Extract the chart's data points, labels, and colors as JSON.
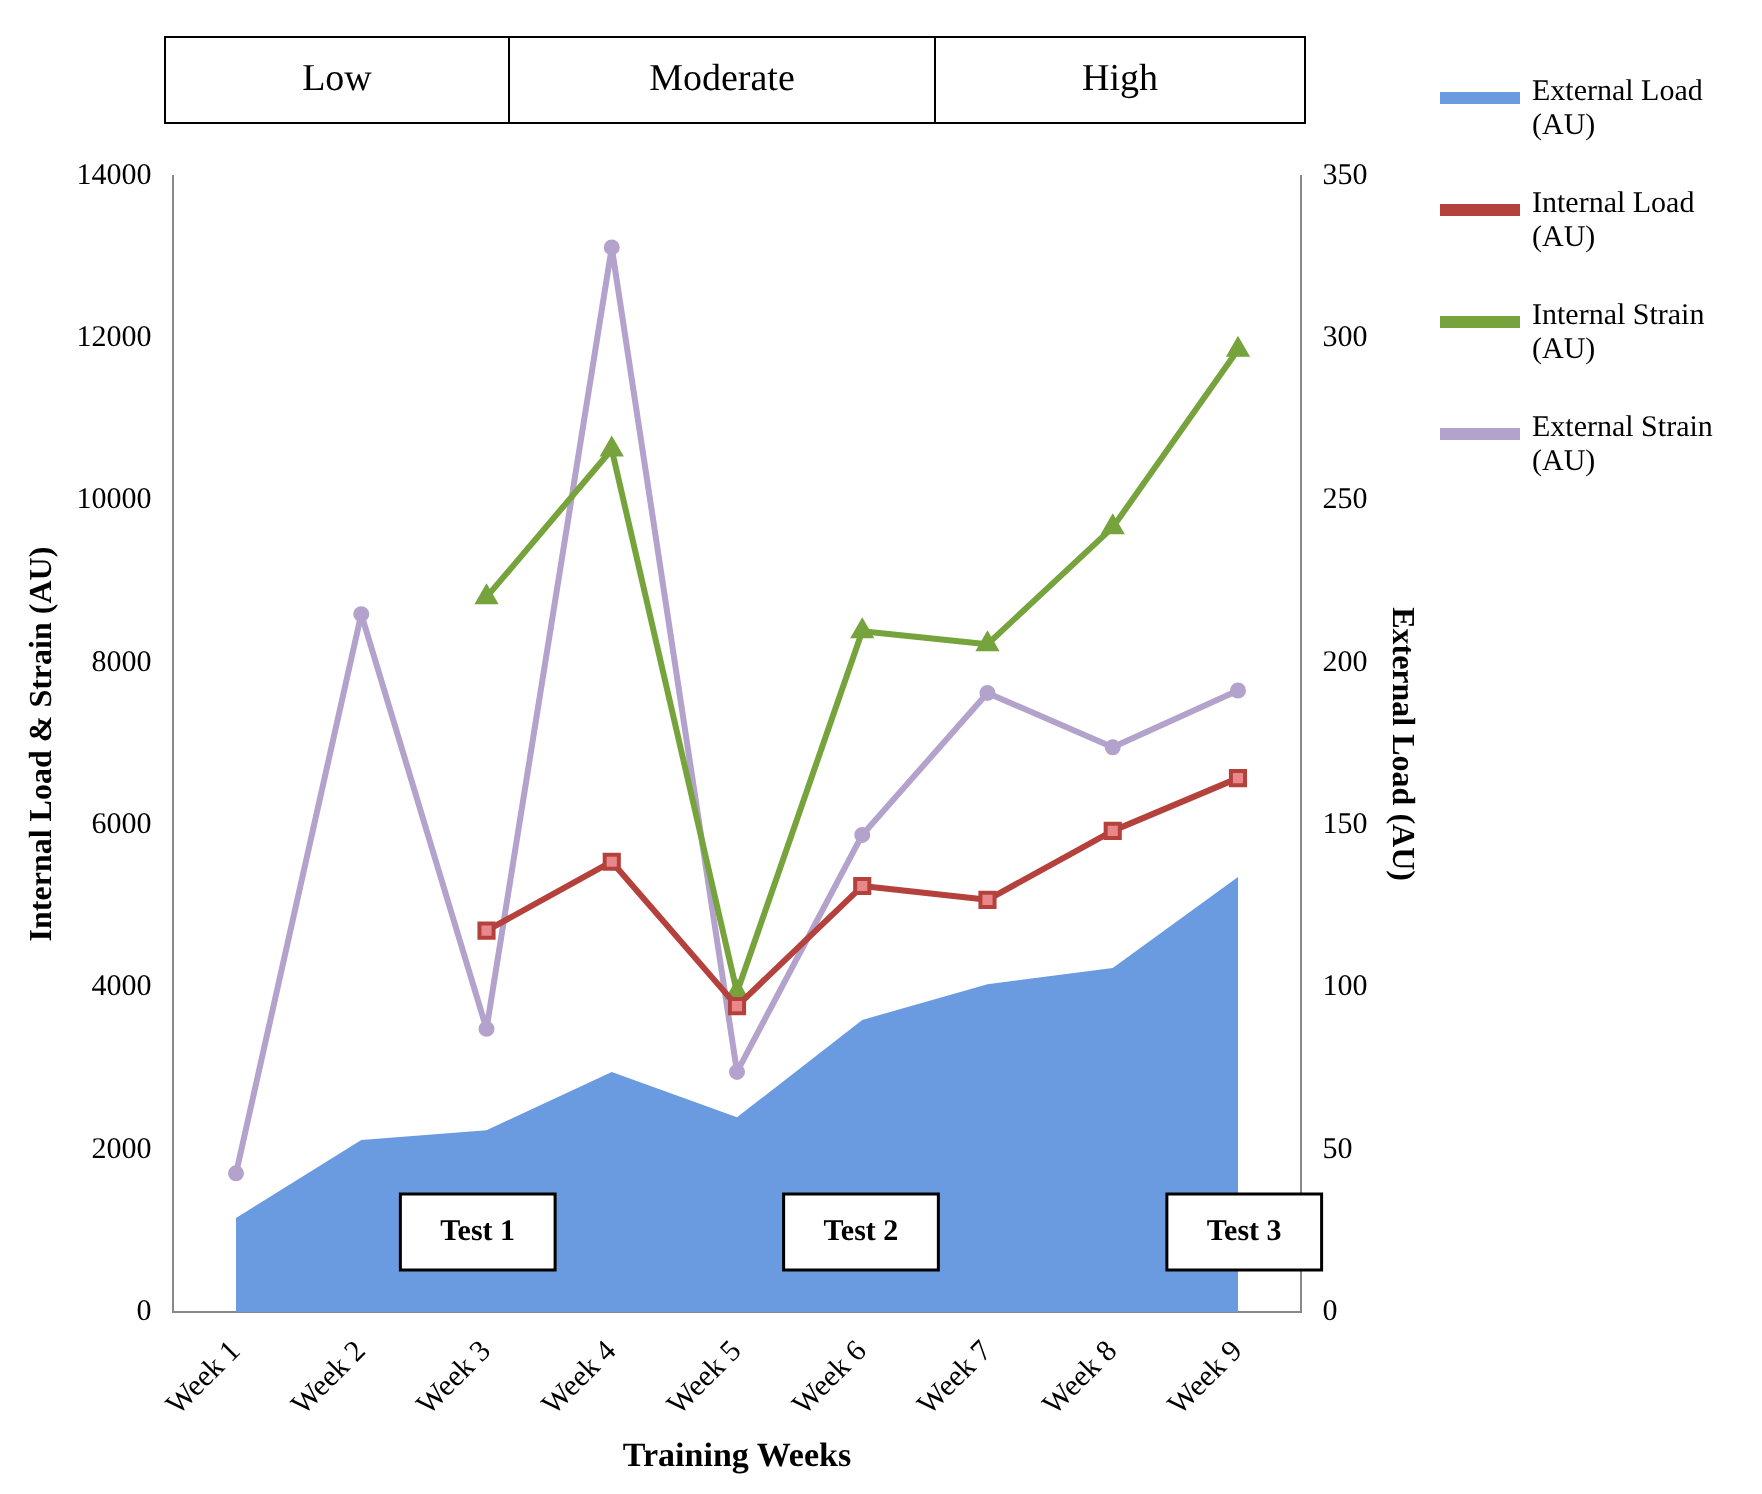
{
  "chart_data": {
    "type": "line",
    "xlabel": "Training Weeks",
    "ylabel": "Internal Load & Strain (AU)",
    "y2label": "External Load (AU)",
    "categories": [
      "Week 1",
      "Week 2",
      "Week 3",
      "Week 4",
      "Week 5",
      "Week 6",
      "Week 7",
      "Week 8",
      "Week 9"
    ],
    "series": [
      {
        "name": "External Load (AU)",
        "type": "area",
        "axis": "y2",
        "color": "#6a9ae0",
        "marker": "none",
        "values": [
          29,
          53,
          56,
          74,
          60,
          90,
          101,
          106,
          134
        ]
      },
      {
        "name": "Internal Load (AU)",
        "type": "line",
        "color": "#b5413d",
        "marker": "square",
        "values": [
          null,
          null,
          4700,
          5550,
          3770,
          5250,
          5080,
          5930,
          6580
        ]
      },
      {
        "name": "Internal Strain (AU)",
        "type": "line",
        "color": "#76a33c",
        "marker": "triangle",
        "values": [
          null,
          null,
          8810,
          10630,
          3940,
          8390,
          8230,
          9670,
          11860
        ]
      },
      {
        "name": "External Strain (AU)",
        "type": "line",
        "color": "#b3a2cc",
        "marker": "circle",
        "values": [
          1710,
          8600,
          3490,
          13120,
          2960,
          5880,
          7630,
          6960,
          7660
        ]
      }
    ],
    "ylim": [
      0,
      14000
    ],
    "yticks": [
      0,
      2000,
      4000,
      6000,
      8000,
      10000,
      12000,
      14000
    ],
    "y2lim": [
      0,
      350
    ],
    "y2ticks": [
      0,
      50,
      100,
      150,
      200,
      250,
      300,
      350
    ],
    "grid": false,
    "legend": "right",
    "annotations": [
      "Low",
      "Moderate",
      "High",
      "Test 1",
      "Test 2",
      "Test 3"
    ]
  }
}
